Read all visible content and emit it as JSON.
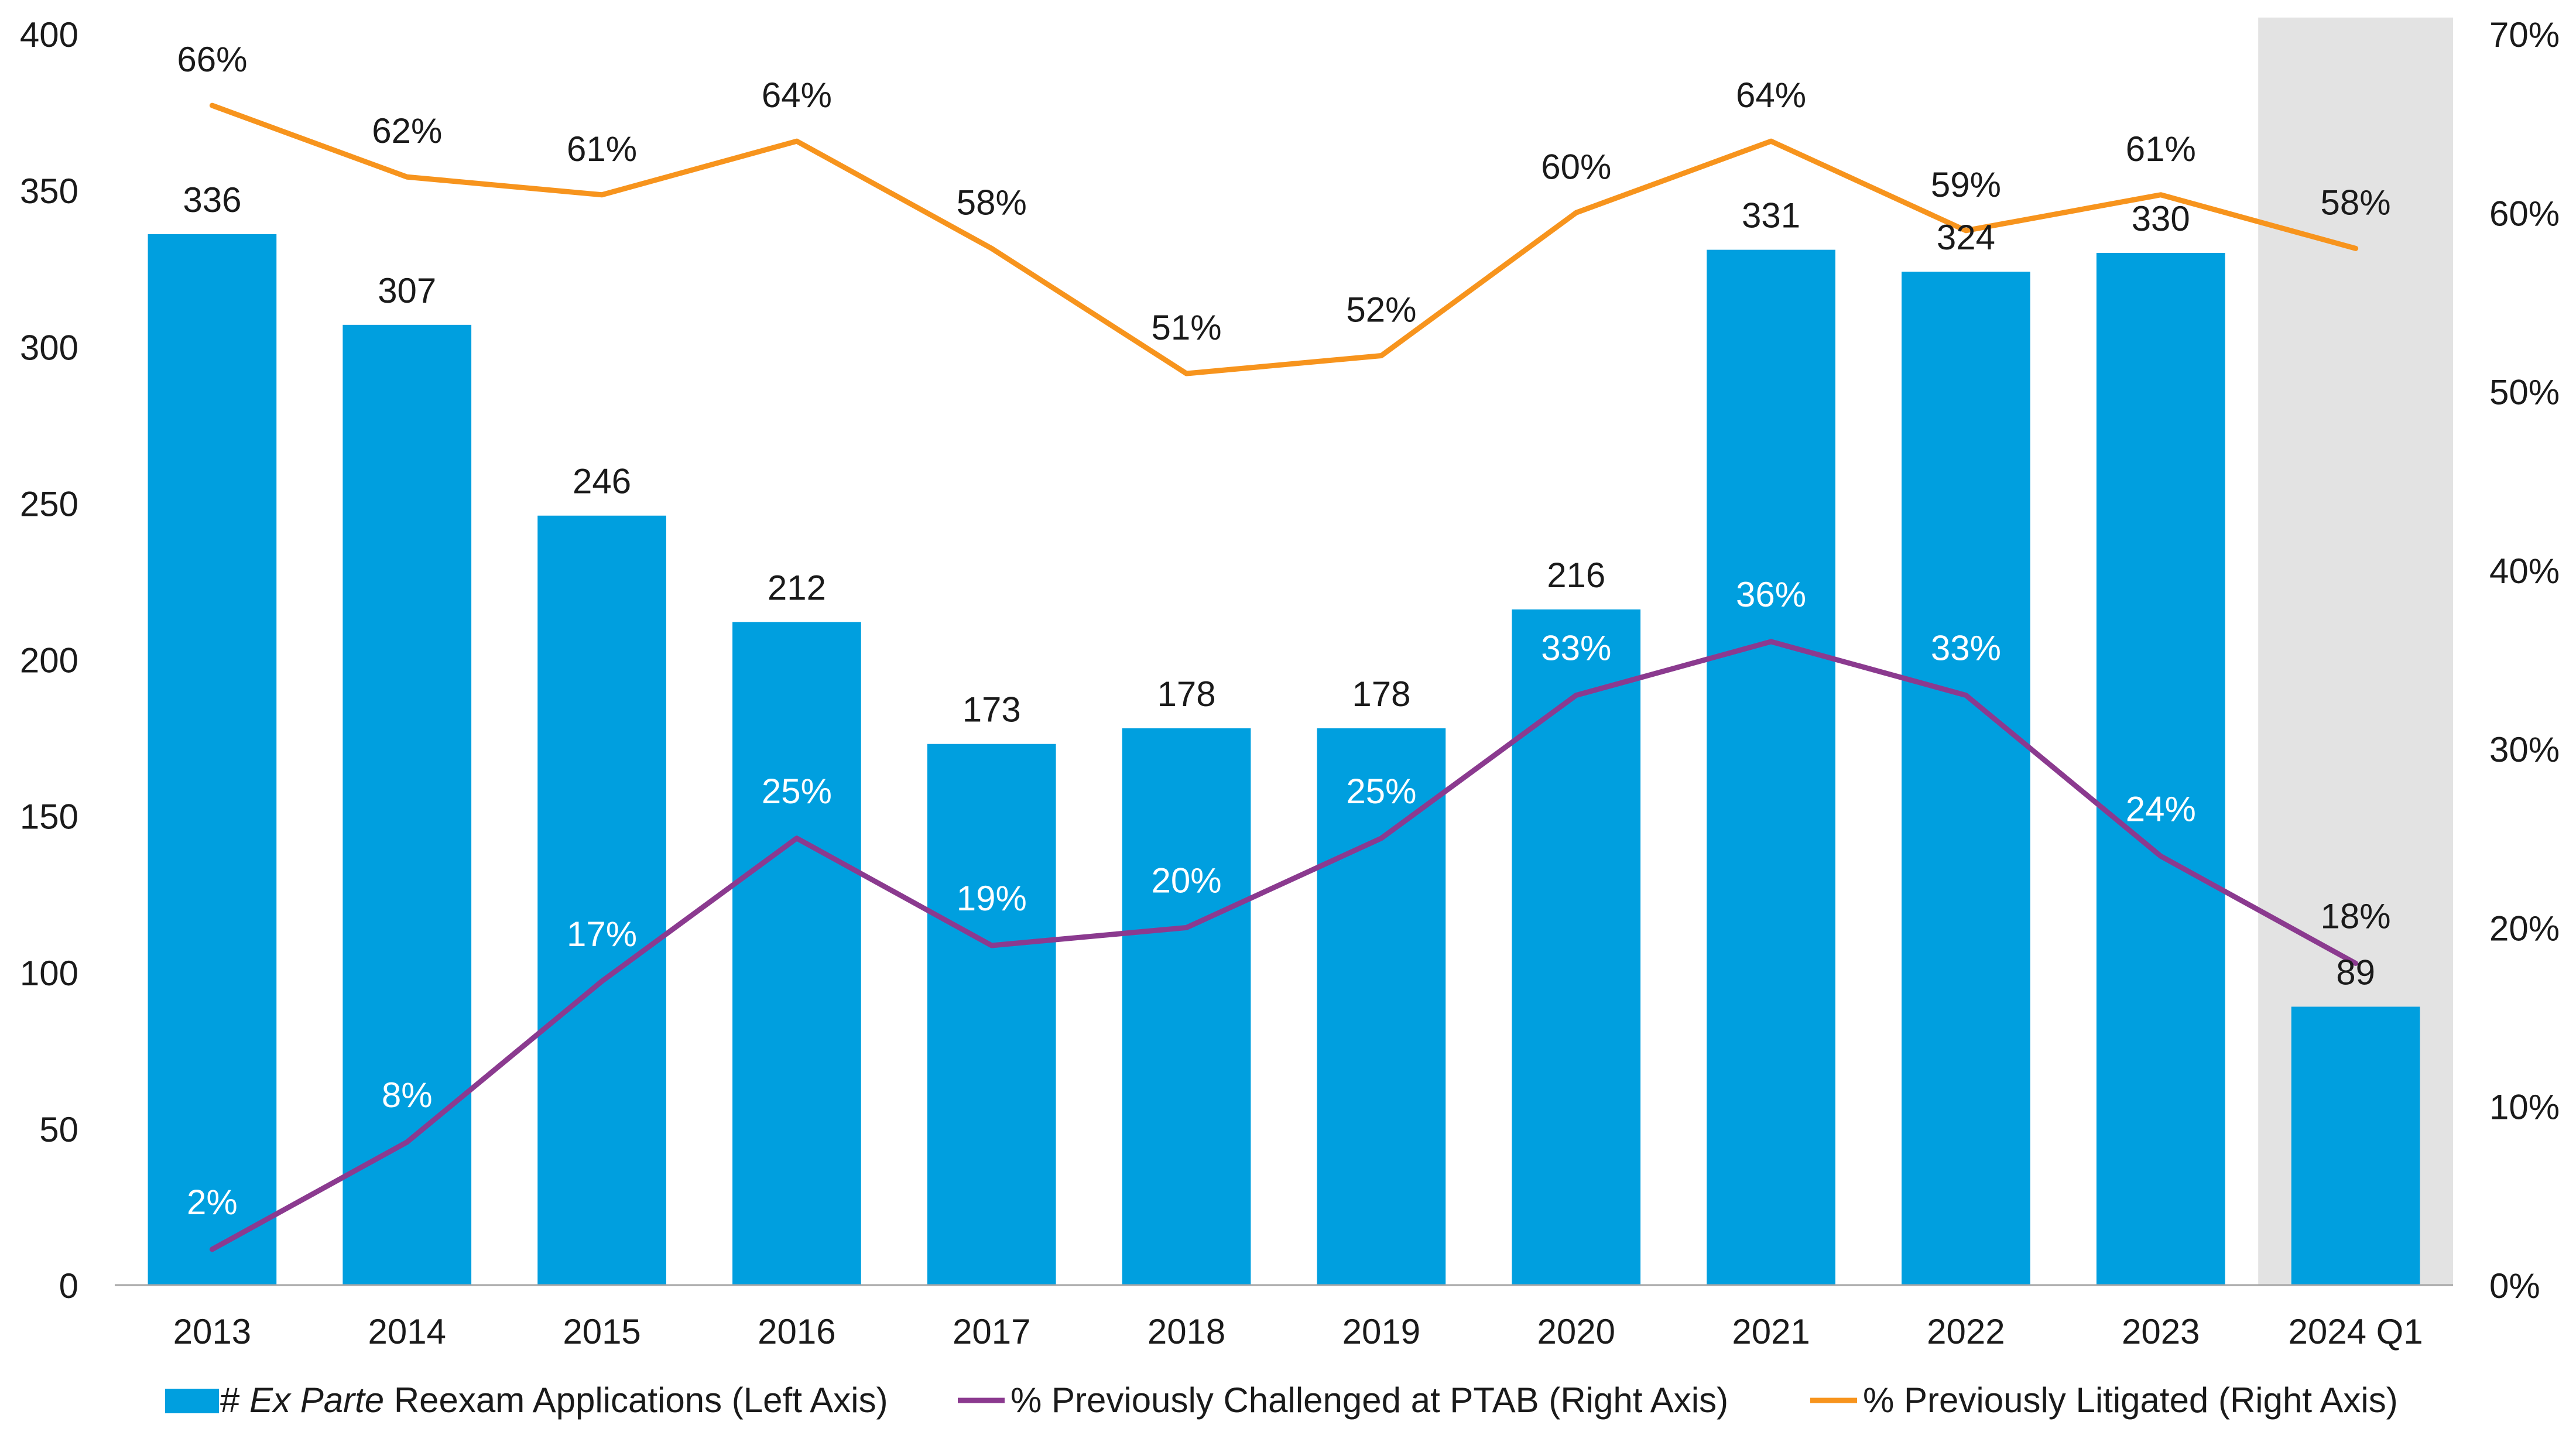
{
  "chart_data": {
    "type": "bar",
    "categories": [
      "2013",
      "2014",
      "2015",
      "2016",
      "2017",
      "2018",
      "2019",
      "2020",
      "2021",
      "2022",
      "2023",
      "2024 Q1"
    ],
    "highlighted_category": "2024 Q1",
    "y_left": {
      "ylim": [
        0,
        400
      ],
      "ticks": [
        "0",
        "50",
        "100",
        "150",
        "200",
        "250",
        "300",
        "350",
        "400"
      ]
    },
    "y_right": {
      "ylim": [
        0,
        70
      ],
      "ticks": [
        "0%",
        "10%",
        "20%",
        "30%",
        "40%",
        "50%",
        "60%",
        "70%"
      ]
    },
    "grid": false,
    "legend_position": "bottom",
    "series": [
      {
        "name": "# Ex Parte Reexam Applications (Left Axis)",
        "legend_parts": [
          "# ",
          "Ex Parte",
          " Reexam Applications (Left Axis)"
        ],
        "kind": "bar",
        "axis": "left",
        "color": "#009fdf",
        "values": [
          336,
          307,
          246,
          212,
          173,
          178,
          178,
          216,
          331,
          324,
          330,
          89
        ],
        "labels": [
          "336",
          "307",
          "246",
          "212",
          "173",
          "178",
          "178",
          "216",
          "331",
          "324",
          "330",
          "89"
        ]
      },
      {
        "name": "% Previously Challenged at PTAB (Right Axis)",
        "kind": "line",
        "axis": "right",
        "color": "#8b3a8f",
        "values": [
          2,
          8,
          17,
          25,
          19,
          20,
          25,
          33,
          36,
          33,
          24,
          18
        ],
        "labels": [
          "2%",
          "8%",
          "17%",
          "25%",
          "19%",
          "20%",
          "25%",
          "33%",
          "36%",
          "33%",
          "24%",
          "18%"
        ]
      },
      {
        "name": "% Previously Litigated (Right Axis)",
        "kind": "line",
        "axis": "right",
        "color": "#f7941d",
        "values": [
          66,
          62,
          61,
          64,
          58,
          51,
          52,
          60,
          64,
          59,
          61,
          58
        ],
        "labels": [
          "66%",
          "62%",
          "61%",
          "64%",
          "58%",
          "51%",
          "52%",
          "60%",
          "64%",
          "59%",
          "61%",
          "58%"
        ]
      }
    ]
  }
}
